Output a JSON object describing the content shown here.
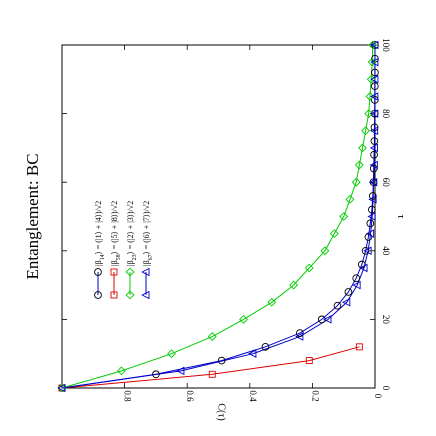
{
  "chart_data": {
    "type": "line",
    "title": "Entanglement: BC",
    "xlabel": "τ",
    "ylabel": "C(τ)",
    "xlim": [
      0,
      100
    ],
    "ylim": [
      0,
      1
    ],
    "xticks": [
      0,
      20,
      40,
      60,
      80,
      100
    ],
    "yticks": [
      0,
      0.2,
      0.4,
      0.6,
      0.8
    ],
    "ytick_labels": [
      "0",
      "0.2",
      "0.4",
      "0.6",
      "0.8"
    ],
    "orientation": "rotated 90° clockwise (τ runs from bottom to top, C(τ) from right to left)",
    "grid": false,
    "legend_position": "upper-left of plot area (rotated)",
    "series": [
      {
        "name": "|β14⟩ = (|1⟩ + |4⟩)/√2",
        "label_parts": {
          "prefix": "|β",
          "sub": "14",
          "suffix": "⟩ = (|1⟩ + |4⟩)/√2"
        },
        "marker": "circle",
        "color": "#000000",
        "line_color": "#0000cc",
        "x": [
          0,
          4,
          8,
          12,
          16,
          20,
          24,
          28,
          32,
          36,
          40,
          44,
          48,
          52,
          56,
          60,
          64,
          68,
          72,
          76,
          80,
          84,
          88,
          92,
          96,
          100
        ],
        "values": [
          1.0,
          0.7,
          0.49,
          0.35,
          0.24,
          0.17,
          0.12,
          0.085,
          0.06,
          0.042,
          0.03,
          0.021,
          0.015,
          0.01,
          0.007,
          0.005,
          0.004,
          0.003,
          0.002,
          0.0015,
          0.001,
          0.0007,
          0.0005,
          0.0003,
          0.0002,
          0.0001
        ]
      },
      {
        "name": "|β58⟩ = (|5⟩ + |8⟩)/√2",
        "label_parts": {
          "prefix": "|β",
          "sub": "58",
          "suffix": "⟩ = (|5⟩ + |8⟩)/√2"
        },
        "marker": "square",
        "color": "#dd0000",
        "line_color": "#dd0000",
        "x": [
          0,
          4,
          8,
          12
        ],
        "values": [
          1.0,
          0.52,
          0.21,
          0.05
        ]
      },
      {
        "name": "|β23⟩ = (|2⟩ + |3⟩)/√2",
        "label_parts": {
          "prefix": "|β",
          "sub": "23",
          "suffix": "⟩ = (|2⟩ + |3⟩)/√2"
        },
        "marker": "diamond",
        "color": "#00cc00",
        "line_color": "#00cc00",
        "x": [
          0,
          5,
          10,
          15,
          20,
          25,
          30,
          35,
          40,
          45,
          50,
          55,
          60,
          65,
          70,
          75,
          80,
          85,
          90,
          95,
          100
        ],
        "values": [
          1.0,
          0.81,
          0.65,
          0.52,
          0.42,
          0.33,
          0.26,
          0.21,
          0.16,
          0.13,
          0.1,
          0.08,
          0.06,
          0.05,
          0.04,
          0.03,
          0.02,
          0.016,
          0.012,
          0.009,
          0.007
        ]
      },
      {
        "name": "|β67⟩ = (|6⟩ + |7⟩)/√2",
        "label_parts": {
          "prefix": "|β",
          "sub": "67",
          "suffix": "⟩ = (|6⟩ + |7⟩)/√2"
        },
        "marker": "triangle",
        "color": "#0000cc",
        "line_color": "#0000cc",
        "x": [
          0,
          5,
          10,
          15,
          20,
          25,
          30,
          35,
          40,
          45,
          50,
          55,
          60,
          65,
          70,
          75,
          80,
          85,
          90,
          95,
          100
        ],
        "values": [
          1.0,
          0.62,
          0.39,
          0.24,
          0.15,
          0.09,
          0.057,
          0.035,
          0.022,
          0.014,
          0.009,
          0.006,
          0.004,
          0.002,
          0.0015,
          0.001,
          0.0006,
          0.0004,
          0.0002,
          0.0001,
          0.0001
        ]
      }
    ]
  }
}
